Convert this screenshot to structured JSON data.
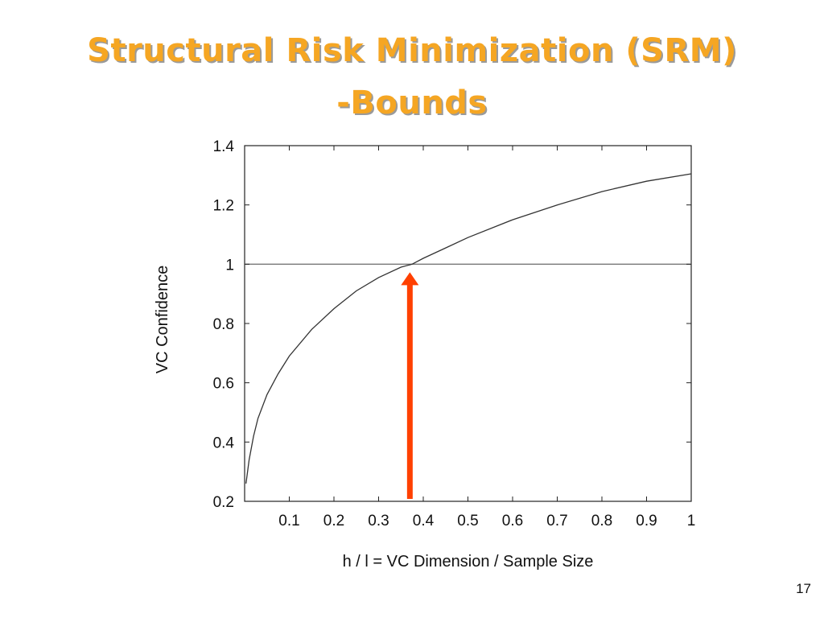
{
  "slide": {
    "title_line_1": "Structural Risk Minimization (SRM)",
    "title_line_2": "-Bounds",
    "page_number": "17",
    "title_color": "#f5a623"
  },
  "chart_data": {
    "type": "line",
    "xlabel": "h / l = VC Dimension / Sample Size",
    "ylabel": "VC Confidence",
    "xlim": [
      0,
      1
    ],
    "ylim": [
      0.2,
      1.4
    ],
    "x_ticks": [
      0.1,
      0.2,
      0.3,
      0.4,
      0.5,
      0.6,
      0.7,
      0.8,
      0.9,
      1
    ],
    "x_tick_labels": [
      "0.1",
      "0.2",
      "0.3",
      "0.4",
      "0.5",
      "0.6",
      "0.7",
      "0.8",
      "0.9",
      "1"
    ],
    "y_ticks": [
      0.2,
      0.4,
      0.6,
      0.8,
      1,
      1.2,
      1.4
    ],
    "y_tick_labels": [
      "0.2",
      "0.4",
      "0.6",
      "0.8",
      "1",
      "1.2",
      "1.4"
    ],
    "grid": false,
    "series": [
      {
        "color": "#333333",
        "x": [
          0.003,
          0.01,
          0.02,
          0.03,
          0.05,
          0.075,
          0.1,
          0.15,
          0.2,
          0.25,
          0.3,
          0.35,
          0.375,
          0.4,
          0.45,
          0.5,
          0.6,
          0.7,
          0.8,
          0.9,
          1.0
        ],
        "y": [
          0.26,
          0.34,
          0.42,
          0.48,
          0.56,
          0.63,
          0.69,
          0.78,
          0.85,
          0.91,
          0.955,
          0.99,
          1.0,
          1.02,
          1.055,
          1.09,
          1.15,
          1.2,
          1.245,
          1.28,
          1.305
        ]
      }
    ],
    "reference_line": {
      "y": 1,
      "color": "#777777"
    },
    "arrow": {
      "x": 0.37,
      "y_from": 0.2,
      "y_to": 1.0,
      "color": "#ff4000"
    }
  }
}
